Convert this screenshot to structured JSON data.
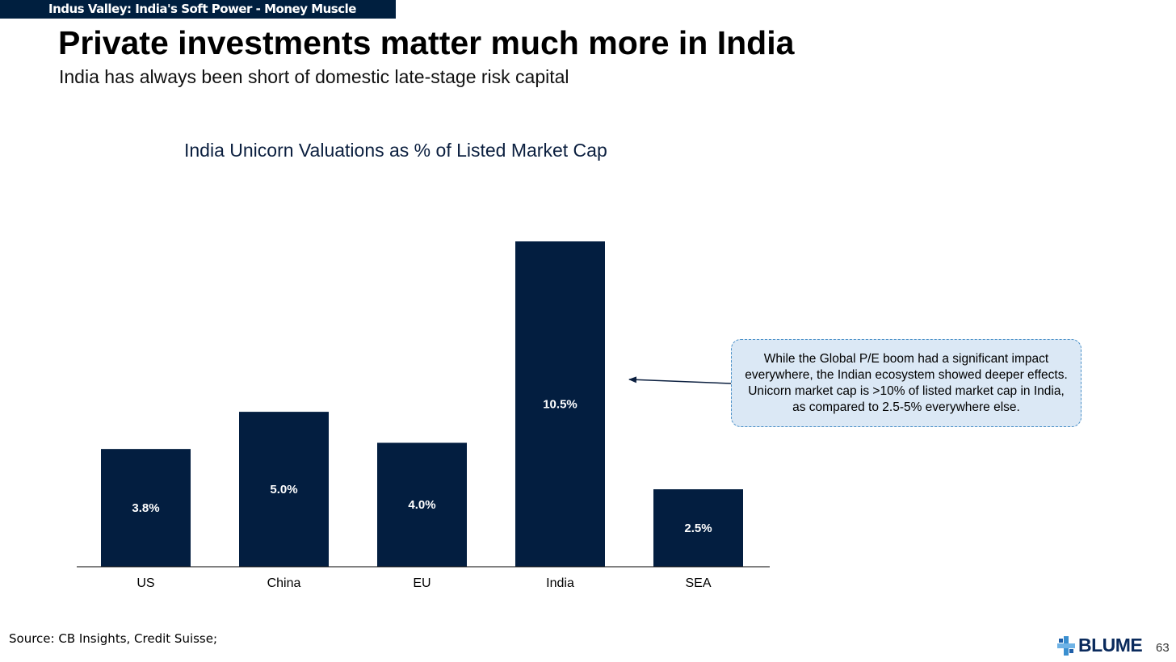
{
  "header": {
    "banner": "Indus Valley: India's Soft Power - Money Muscle",
    "title": "Private investments matter much more in India",
    "subtitle": "India has always been short of domestic late-stage risk capital"
  },
  "chart_data": {
    "type": "bar",
    "title": "India Unicorn Valuations as % of Listed Market Cap",
    "categories": [
      "US",
      "China",
      "EU",
      "India",
      "SEA"
    ],
    "values": [
      3.8,
      5.0,
      4.0,
      10.5,
      2.5
    ],
    "data_labels": [
      "3.8%",
      "5.0%",
      "4.0%",
      "10.5%",
      "2.5%"
    ],
    "xlabel": "",
    "ylabel": "",
    "ylim": [
      0,
      10.5
    ],
    "grid": false,
    "bar_color": "#031e40",
    "label_color": "#ffffff"
  },
  "callout": {
    "text": "While the Global P/E boom had a significant impact everywhere, the Indian ecosystem showed deeper effects. Unicorn market cap is >10% of listed market cap in India, as compared to 2.5-5% everywhere else.",
    "target": "India"
  },
  "footer": {
    "source": "Source: CB Insights, Credit Suisse;",
    "brand": "BLUME",
    "page_number": "63"
  }
}
